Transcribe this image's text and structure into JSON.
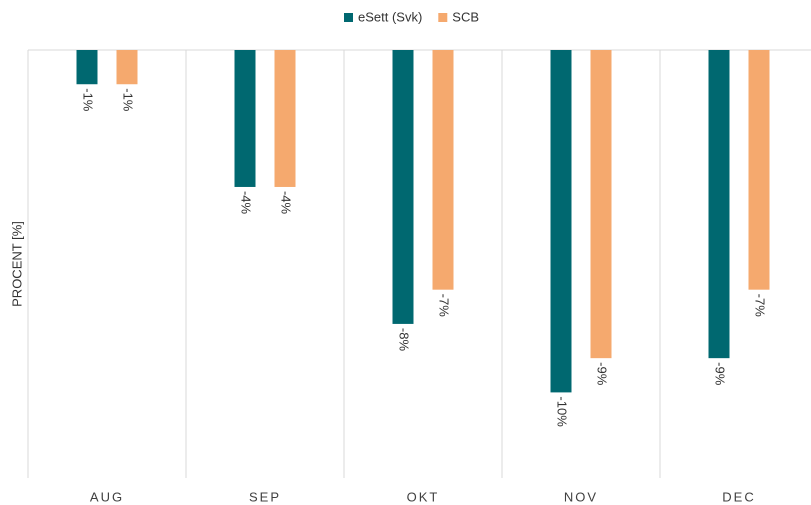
{
  "chart_data": {
    "type": "bar",
    "y_label": "PROCENT [%]",
    "categories": [
      "AUG",
      "SEP",
      "OKT",
      "NOV",
      "DEC"
    ],
    "series": [
      {
        "name": "eSett (Svk)",
        "color": "#006870",
        "values": [
          -1,
          -4,
          -8,
          -10,
          -9
        ],
        "value_labels": [
          "-1%",
          "-4%",
          "-8%",
          "-10%",
          "-9%"
        ]
      },
      {
        "name": "SCB",
        "color": "#f5a96e",
        "values": [
          -1,
          -4,
          -7,
          -9,
          -7
        ],
        "value_labels": [
          "-1%",
          "-4%",
          "-7%",
          "-9%",
          "-7%"
        ]
      }
    ],
    "ylim": [
      -12.5,
      0
    ],
    "legend": "top"
  }
}
